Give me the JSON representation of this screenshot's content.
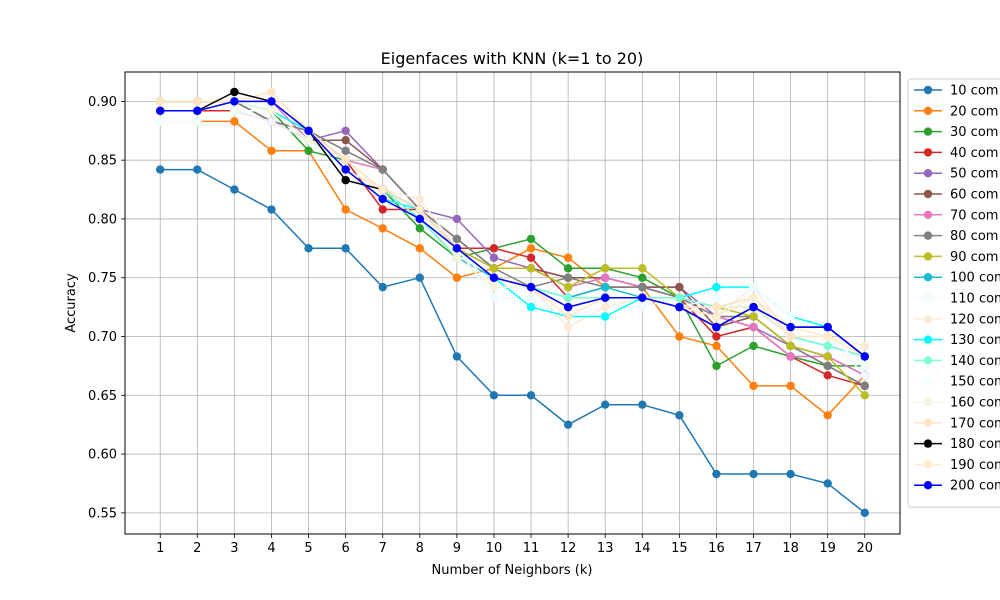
{
  "chart_data": {
    "type": "line",
    "title": "Eigenfaces with KNN (k=1 to 20)",
    "xlabel": "Number of Neighbors (k)",
    "ylabel": "Accuracy",
    "x": [
      1,
      2,
      3,
      4,
      5,
      6,
      7,
      8,
      9,
      10,
      11,
      12,
      13,
      14,
      15,
      16,
      17,
      18,
      19,
      20
    ],
    "xlim": [
      0.05,
      20.95
    ],
    "ylim": [
      0.532,
      0.925
    ],
    "yticks": [
      0.55,
      0.6,
      0.65,
      0.7,
      0.75,
      0.8,
      0.85,
      0.9
    ],
    "ytick_labels": [
      "0.55",
      "0.60",
      "0.65",
      "0.70",
      "0.75",
      "0.80",
      "0.85",
      "0.90"
    ],
    "xtick_labels": [
      "1",
      "2",
      "3",
      "4",
      "5",
      "6",
      "7",
      "8",
      "9",
      "10",
      "11",
      "12",
      "13",
      "14",
      "15",
      "16",
      "17",
      "18",
      "19",
      "20"
    ],
    "grid": true,
    "legend_position": "right, outside plot (clipped)",
    "series": [
      {
        "name": "10 com",
        "color": "#1f77b4",
        "values": [
          0.842,
          0.842,
          0.825,
          0.808,
          0.775,
          0.775,
          0.742,
          0.75,
          0.683,
          0.65,
          0.65,
          0.625,
          0.642,
          0.642,
          0.633,
          0.583,
          0.583,
          0.583,
          0.575,
          0.55
        ]
      },
      {
        "name": "20 com",
        "color": "#ff7f0e",
        "values": [
          0.883,
          0.883,
          0.883,
          0.858,
          0.858,
          0.808,
          0.792,
          0.775,
          0.75,
          0.758,
          0.775,
          0.767,
          0.742,
          0.742,
          0.7,
          0.692,
          0.658,
          0.658,
          0.633,
          0.667
        ]
      },
      {
        "name": "30 com",
        "color": "#2ca02c",
        "values": [
          0.9,
          0.9,
          0.9,
          0.892,
          0.858,
          0.85,
          0.825,
          0.792,
          0.767,
          0.775,
          0.783,
          0.758,
          0.758,
          0.75,
          0.733,
          0.675,
          0.692,
          0.683,
          0.675,
          0.675
        ]
      },
      {
        "name": "40 com",
        "color": "#d62728",
        "values": [
          0.892,
          0.892,
          0.892,
          0.883,
          0.875,
          0.85,
          0.808,
          0.808,
          0.775,
          0.775,
          0.767,
          0.733,
          0.742,
          0.742,
          0.733,
          0.7,
          0.708,
          0.683,
          0.667,
          0.658
        ]
      },
      {
        "name": "50 com",
        "color": "#9467bd",
        "values": [
          0.9,
          0.9,
          0.9,
          0.883,
          0.867,
          0.875,
          0.842,
          0.808,
          0.8,
          0.767,
          0.758,
          0.75,
          0.75,
          0.742,
          0.742,
          0.717,
          0.708,
          0.692,
          0.683,
          0.667
        ]
      },
      {
        "name": "60 com",
        "color": "#8c564b",
        "values": [
          0.9,
          0.9,
          0.9,
          0.883,
          0.867,
          0.867,
          0.842,
          0.808,
          0.783,
          0.758,
          0.758,
          0.75,
          0.75,
          0.742,
          0.742,
          0.708,
          0.717,
          0.692,
          0.675,
          0.658
        ]
      },
      {
        "name": "70 com",
        "color": "#e377c2",
        "values": [
          0.892,
          0.892,
          0.9,
          0.9,
          0.867,
          0.85,
          0.842,
          0.808,
          0.775,
          0.758,
          0.758,
          0.742,
          0.75,
          0.742,
          0.733,
          0.717,
          0.708,
          0.683,
          0.683,
          0.667
        ]
      },
      {
        "name": "80 com",
        "color": "#7f7f7f",
        "values": [
          0.9,
          0.9,
          0.9,
          0.883,
          0.875,
          0.858,
          0.842,
          0.808,
          0.783,
          0.758,
          0.742,
          0.75,
          0.742,
          0.742,
          0.733,
          0.717,
          0.717,
          0.692,
          0.675,
          0.658
        ]
      },
      {
        "name": "90 com",
        "color": "#bcbd22",
        "values": [
          0.9,
          0.9,
          0.9,
          0.892,
          0.867,
          0.842,
          0.825,
          0.8,
          0.775,
          0.758,
          0.758,
          0.742,
          0.758,
          0.758,
          0.733,
          0.725,
          0.717,
          0.692,
          0.683,
          0.65
        ]
      },
      {
        "name": "100 com",
        "color": "#17becf",
        "values": [
          0.892,
          0.892,
          0.9,
          0.892,
          0.867,
          0.842,
          0.825,
          0.8,
          0.767,
          0.75,
          0.742,
          0.733,
          0.742,
          0.733,
          0.733,
          0.725,
          0.725,
          0.7,
          0.692,
          0.683
        ]
      },
      {
        "name": "110 com",
        "color": "#f0f8ff",
        "values": [
          0.883,
          0.883,
          0.892,
          0.883,
          0.867,
          0.842,
          0.825,
          0.808,
          0.775,
          0.733,
          0.733,
          0.717,
          0.725,
          0.725,
          0.733,
          0.742,
          0.742,
          0.717,
          0.7,
          0.667
        ]
      },
      {
        "name": "120 com",
        "color": "#faebd7",
        "values": [
          0.9,
          0.9,
          0.9,
          0.9,
          0.875,
          0.842,
          0.825,
          0.817,
          0.775,
          0.75,
          0.742,
          0.708,
          0.725,
          0.733,
          0.725,
          0.717,
          0.742,
          0.7,
          0.7,
          0.692
        ]
      },
      {
        "name": "130 com",
        "color": "#00ffff",
        "values": [
          0.892,
          0.892,
          0.9,
          0.892,
          0.875,
          0.842,
          0.817,
          0.808,
          0.775,
          0.75,
          0.725,
          0.717,
          0.717,
          0.733,
          0.733,
          0.742,
          0.742,
          0.717,
          0.708,
          0.683
        ]
      },
      {
        "name": "140 com",
        "color": "#7fffd4",
        "values": [
          0.892,
          0.892,
          0.9,
          0.892,
          0.867,
          0.842,
          0.825,
          0.8,
          0.767,
          0.742,
          0.742,
          0.733,
          0.733,
          0.733,
          0.733,
          0.725,
          0.733,
          0.7,
          0.692,
          0.683
        ]
      },
      {
        "name": "150 com",
        "color": "#f0ffff",
        "values": [
          0.883,
          0.883,
          0.892,
          0.892,
          0.867,
          0.842,
          0.825,
          0.808,
          0.775,
          0.742,
          0.742,
          0.717,
          0.733,
          0.733,
          0.725,
          0.733,
          0.742,
          0.717,
          0.7,
          0.675
        ]
      },
      {
        "name": "160 com",
        "color": "#f5f5dc",
        "values": [
          0.892,
          0.892,
          0.9,
          0.892,
          0.867,
          0.85,
          0.825,
          0.808,
          0.767,
          0.742,
          0.742,
          0.725,
          0.733,
          0.733,
          0.725,
          0.725,
          0.725,
          0.7,
          0.7,
          0.683
        ]
      },
      {
        "name": "170 com",
        "color": "#ffe4c4",
        "values": [
          0.9,
          0.9,
          0.9,
          0.908,
          0.875,
          0.85,
          0.825,
          0.808,
          0.775,
          0.75,
          0.742,
          0.717,
          0.733,
          0.733,
          0.725,
          0.725,
          0.733,
          0.7,
          0.7,
          0.683
        ]
      },
      {
        "name": "180 com",
        "color": "#000000",
        "values": [
          0.892,
          0.892,
          0.908,
          0.9,
          0.875,
          0.833,
          0.825,
          0.808,
          0.775,
          0.75,
          0.742,
          0.725,
          0.733,
          0.733,
          0.725,
          0.708,
          0.725,
          0.708,
          0.708,
          0.683
        ]
      },
      {
        "name": "190 com",
        "color": "#ffebcd",
        "values": [
          0.892,
          0.892,
          0.9,
          0.9,
          0.875,
          0.842,
          0.825,
          0.808,
          0.775,
          0.75,
          0.742,
          0.725,
          0.733,
          0.733,
          0.725,
          0.717,
          0.733,
          0.708,
          0.7,
          0.683
        ]
      },
      {
        "name": "200 com",
        "color": "#0000ff",
        "values": [
          0.892,
          0.892,
          0.9,
          0.9,
          0.875,
          0.842,
          0.817,
          0.8,
          0.775,
          0.75,
          0.742,
          0.725,
          0.733,
          0.733,
          0.725,
          0.708,
          0.725,
          0.708,
          0.708,
          0.683
        ]
      }
    ]
  }
}
